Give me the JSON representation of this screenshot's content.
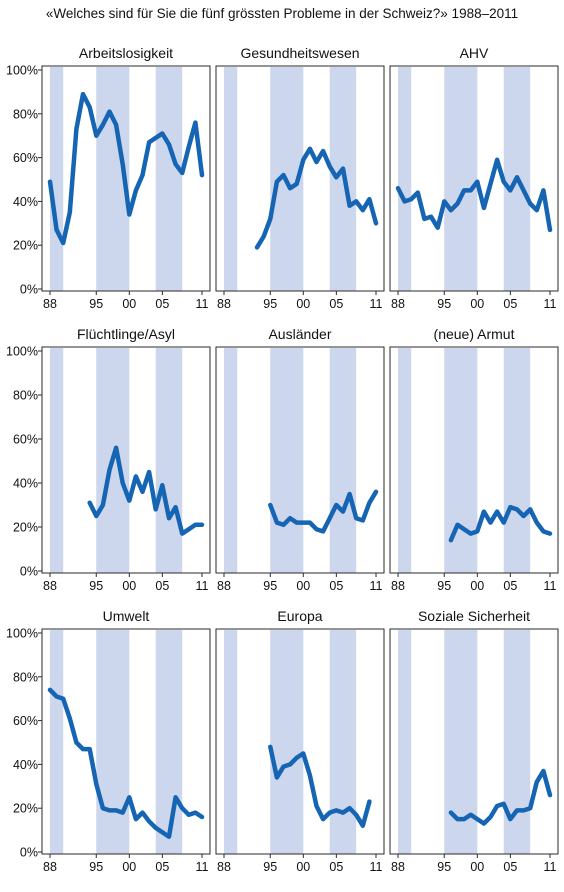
{
  "title": "«Welches sind für Sie die fünf grössten Probleme in der Schweiz?» 1988–2011",
  "colors": {
    "line": "#1565b4",
    "band": "#ccd6ec",
    "frame": "#2a2a2a"
  },
  "y_tick_labels": [
    "0%",
    "20%",
    "40%",
    "60%",
    "80%",
    "100%"
  ],
  "x_tick_labels": [
    "88",
    "95",
    "00",
    "05",
    "11"
  ],
  "chart_data": [
    {
      "type": "line",
      "title": "Arbeitslosigkeit",
      "xlim": [
        1988,
        2011
      ],
      "ylim": [
        0,
        100
      ],
      "x": [
        1988,
        1989,
        1990,
        1991,
        1992,
        1993,
        1994,
        1995,
        1996,
        1997,
        1998,
        1999,
        2000,
        2001,
        2002,
        2003,
        2004,
        2005,
        2006,
        2007,
        2008,
        2009,
        2010,
        2011
      ],
      "values": [
        49,
        27,
        21,
        35,
        73,
        89,
        83,
        70,
        75,
        81,
        75,
        57,
        34,
        45,
        52,
        67,
        69,
        71,
        66,
        57,
        53,
        65,
        76,
        52
      ]
    },
    {
      "type": "line",
      "title": "Gesundheitswesen",
      "xlim": [
        1988,
        2011
      ],
      "ylim": [
        0,
        100
      ],
      "x": [
        1993,
        1994,
        1995,
        1996,
        1997,
        1998,
        1999,
        2000,
        2001,
        2002,
        2003,
        2004,
        2005,
        2006,
        2007,
        2008,
        2009,
        2010,
        2011
      ],
      "values": [
        19,
        24,
        32,
        49,
        52,
        46,
        48,
        59,
        64,
        58,
        63,
        56,
        51,
        55,
        38,
        40,
        36,
        41,
        30
      ]
    },
    {
      "type": "line",
      "title": "AHV",
      "xlim": [
        1988,
        2011
      ],
      "ylim": [
        0,
        100
      ],
      "x": [
        1988,
        1989,
        1990,
        1991,
        1992,
        1993,
        1994,
        1995,
        1996,
        1997,
        1998,
        1999,
        2000,
        2001,
        2002,
        2003,
        2004,
        2005,
        2006,
        2007,
        2008,
        2009,
        2010,
        2011
      ],
      "values": [
        46,
        40,
        41,
        44,
        32,
        33,
        28,
        40,
        36,
        39,
        45,
        45,
        49,
        37,
        48,
        59,
        49,
        45,
        51,
        45,
        39,
        36,
        45,
        27
      ]
    },
    {
      "type": "line",
      "title": "Flüchtlinge/Asyl",
      "xlim": [
        1988,
        2011
      ],
      "ylim": [
        0,
        100
      ],
      "x": [
        1994,
        1995,
        1996,
        1997,
        1998,
        1999,
        2000,
        2001,
        2002,
        2003,
        2004,
        2005,
        2006,
        2007,
        2008,
        2009,
        2010,
        2011
      ],
      "values": [
        31,
        25,
        30,
        46,
        56,
        40,
        32,
        43,
        36,
        45,
        28,
        39,
        24,
        29,
        17,
        19,
        21,
        21
      ]
    },
    {
      "type": "line",
      "title": "Ausländer",
      "xlim": [
        1988,
        2011
      ],
      "ylim": [
        0,
        100
      ],
      "x": [
        1995,
        1996,
        1997,
        1998,
        1999,
        2000,
        2001,
        2002,
        2003,
        2004,
        2005,
        2006,
        2007,
        2008,
        2009,
        2010,
        2011
      ],
      "values": [
        30,
        22,
        21,
        24,
        22,
        22,
        22,
        19,
        18,
        24,
        30,
        27,
        35,
        24,
        23,
        31,
        36
      ]
    },
    {
      "type": "line",
      "title": "(neue) Armut",
      "xlim": [
        1988,
        2011
      ],
      "ylim": [
        0,
        100
      ],
      "x": [
        1996,
        1997,
        1998,
        1999,
        2000,
        2001,
        2002,
        2003,
        2004,
        2005,
        2006,
        2007,
        2008,
        2009,
        2010,
        2011
      ],
      "values": [
        14,
        21,
        19,
        17,
        18,
        27,
        22,
        27,
        22,
        29,
        28,
        25,
        28,
        22,
        18,
        17
      ]
    },
    {
      "type": "line",
      "title": "Umwelt",
      "xlim": [
        1988,
        2011
      ],
      "ylim": [
        0,
        100
      ],
      "x": [
        1988,
        1989,
        1990,
        1991,
        1992,
        1993,
        1994,
        1995,
        1996,
        1997,
        1998,
        1999,
        2000,
        2001,
        2002,
        2003,
        2004,
        2005,
        2006,
        2007,
        2008,
        2009,
        2010,
        2011
      ],
      "values": [
        74,
        71,
        70,
        61,
        50,
        47,
        47,
        31,
        20,
        19,
        19,
        18,
        25,
        15,
        18,
        14,
        11,
        9,
        7,
        25,
        20,
        17,
        18,
        16
      ]
    },
    {
      "type": "line",
      "title": "Europa",
      "xlim": [
        1988,
        2011
      ],
      "ylim": [
        0,
        100
      ],
      "x": [
        1995,
        1996,
        1997,
        1998,
        1999,
        2000,
        2001,
        2002,
        2003,
        2004,
        2005,
        2006,
        2007,
        2008,
        2009,
        2010
      ],
      "values": [
        48,
        34,
        39,
        40,
        43,
        45,
        35,
        21,
        15,
        18,
        19,
        18,
        20,
        17,
        12,
        23
      ]
    },
    {
      "type": "line",
      "title": "Soziale Sicherheit",
      "xlim": [
        1988,
        2011
      ],
      "ylim": [
        0,
        100
      ],
      "x": [
        1996,
        1997,
        1998,
        1999,
        2000,
        2001,
        2002,
        2003,
        2004,
        2005,
        2006,
        2007,
        2008,
        2009,
        2010,
        2011
      ],
      "values": [
        18,
        15,
        15,
        17,
        15,
        13,
        16,
        21,
        22,
        15,
        19,
        19,
        20,
        32,
        37,
        26
      ]
    }
  ]
}
